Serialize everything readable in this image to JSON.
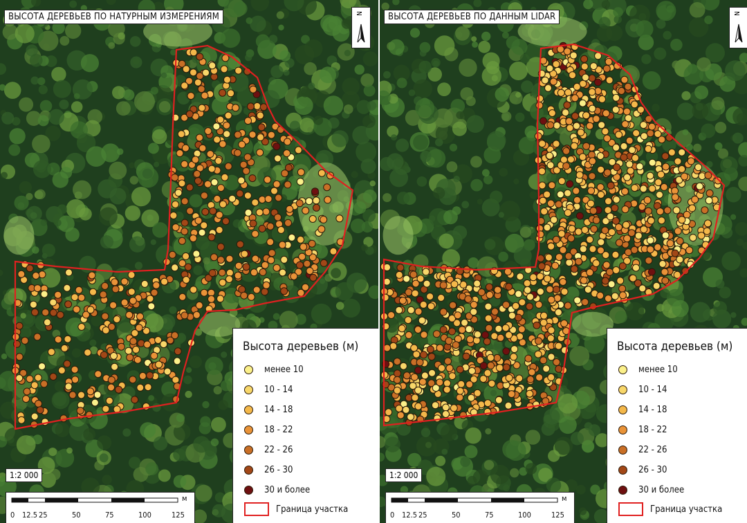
{
  "panels": [
    {
      "title": "ВЫСОТА ДЕРЕВЬЕВ ПО НАТУРНЫМ ИЗМЕРЕНИЯМ",
      "north_label": "N",
      "scale_ratio": "1:2 000",
      "scale_ticks": [
        "0",
        "12.5",
        "25",
        "50",
        "75",
        "100",
        "125"
      ],
      "scale_unit": "м",
      "legend": {
        "title": "Высота деревьев (м)",
        "classes": [
          {
            "label": "менее 10",
            "color": "#fbf08a"
          },
          {
            "label": "10 - 14",
            "color": "#f8d76a"
          },
          {
            "label": "14 - 18",
            "color": "#f4b84a"
          },
          {
            "label": "18 - 22",
            "color": "#e99338"
          },
          {
            "label": "22 - 26",
            "color": "#c96f26"
          },
          {
            "label": "26 - 30",
            "color": "#a24717"
          },
          {
            "label": "30 и более",
            "color": "#6e1010"
          }
        ],
        "boundary_label": "Граница участка"
      }
    },
    {
      "title": "ВЫСОТА ДЕРЕВЬЕВ ПО ДАННЫМ LIDAR",
      "north_label": "N",
      "scale_ratio": "1:2 000",
      "scale_ticks": [
        "0",
        "12.5",
        "25",
        "50",
        "75",
        "100",
        "125"
      ],
      "scale_unit": "м",
      "legend": {
        "title": "Высота деревьев (м)",
        "classes": [
          {
            "label": "менее 10",
            "color": "#fbf08a"
          },
          {
            "label": "10 - 14",
            "color": "#f8d76a"
          },
          {
            "label": "14 - 18",
            "color": "#f4b84a"
          },
          {
            "label": "18 - 22",
            "color": "#e99338"
          },
          {
            "label": "22 - 26",
            "color": "#c96f26"
          },
          {
            "label": "26 - 30",
            "color": "#a24717"
          },
          {
            "label": "30 и более",
            "color": "#6e1010"
          }
        ],
        "boundary_label": "Граница участка"
      }
    }
  ],
  "colors": {
    "boundary": "#e02020",
    "canopy_dark": "#1e3d1e",
    "clearing": "#9ec96a"
  }
}
